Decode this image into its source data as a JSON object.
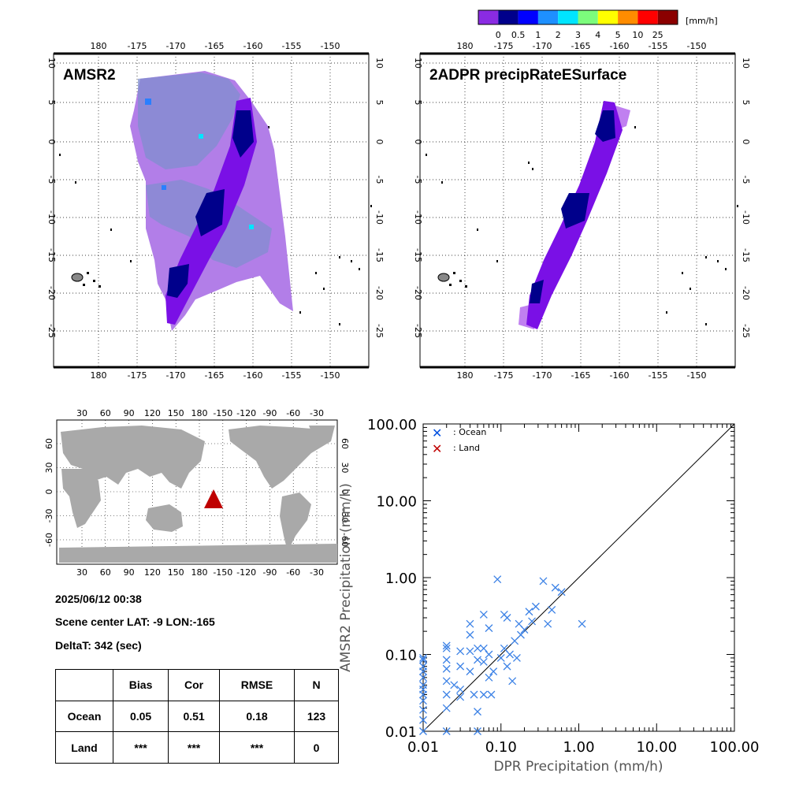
{
  "colorbar": {
    "unit": "[mm/h]",
    "labels": [
      "0",
      "0.5",
      "1",
      "2",
      "3",
      "4",
      "5",
      "10",
      "25"
    ],
    "colors": [
      "#8a2be2",
      "#00008b",
      "#0000ff",
      "#1e90ff",
      "#00e5ff",
      "#7cfc7c",
      "#ffff00",
      "#ff8c00",
      "#ff0000",
      "#8b0000"
    ]
  },
  "panels": [
    {
      "title": "AMSR2",
      "lon_labels": [
        "180",
        "-175",
        "-170",
        "-165",
        "-160",
        "-155",
        "-150"
      ],
      "lat_labels": [
        "10",
        "5",
        "0",
        "-5",
        "-10",
        "-15",
        "-20",
        "-25"
      ]
    },
    {
      "title": "2ADPR precipRateESurface",
      "lon_labels": [
        "180",
        "-175",
        "-170",
        "-165",
        "-160",
        "-155",
        "-150"
      ],
      "lat_labels": [
        "10",
        "5",
        "0",
        "-5",
        "-10",
        "-15",
        "-20",
        "-25"
      ]
    }
  ],
  "world_map": {
    "lon_labels": [
      "30",
      "60",
      "90",
      "120",
      "150",
      "180",
      "-150",
      "-120",
      "-90",
      "-60",
      "-30"
    ],
    "lat_labels": [
      "60",
      "30",
      "0",
      "-30",
      "-60"
    ],
    "land_color": "#a9a9a9",
    "marker_color": "#bf0000"
  },
  "info": {
    "datetime": "2025/06/12 00:38",
    "scene_center": "Scene center LAT: -9   LON:-165",
    "delta_t": "DeltaT:  342 (sec)"
  },
  "stats_table": {
    "headers": [
      "",
      "Bias",
      "Cor",
      "RMSE",
      "N"
    ],
    "rows": [
      [
        "Ocean",
        "0.05",
        "0.51",
        "0.18",
        "123"
      ],
      [
        "Land",
        "***",
        "***",
        "***",
        "0"
      ]
    ]
  },
  "chart_data": {
    "type": "scatter",
    "scale": "log-log",
    "xlim": [
      0.01,
      100
    ],
    "ylim": [
      0.01,
      100
    ],
    "xlabel": "DPR Precipitation (mm/h)",
    "ylabel": "AMSR2 Precipitation (mm/h)",
    "tick_labels": [
      "0.01",
      "0.10",
      "1.00",
      "10.00",
      "100.00"
    ],
    "reference_line": "1:1 diagonal",
    "legend": [
      {
        "label": ": Ocean",
        "color": "#0050e0"
      },
      {
        "label": ": Land",
        "color": "#c00000"
      }
    ],
    "series": [
      {
        "name": "Ocean",
        "color": "#3c82e6",
        "points": [
          [
            0.01,
            0.09
          ],
          [
            0.01,
            0.085
          ],
          [
            0.01,
            0.07
          ],
          [
            0.01,
            0.06
          ],
          [
            0.01,
            0.05
          ],
          [
            0.01,
            0.04
          ],
          [
            0.01,
            0.035
          ],
          [
            0.01,
            0.03
          ],
          [
            0.01,
            0.025
          ],
          [
            0.01,
            0.019
          ],
          [
            0.01,
            0.014
          ],
          [
            0.01,
            0.01
          ],
          [
            0.02,
            0.13
          ],
          [
            0.02,
            0.12
          ],
          [
            0.02,
            0.085
          ],
          [
            0.02,
            0.065
          ],
          [
            0.02,
            0.045
          ],
          [
            0.02,
            0.03
          ],
          [
            0.02,
            0.02
          ],
          [
            0.02,
            0.01
          ],
          [
            0.025,
            0.04
          ],
          [
            0.03,
            0.11
          ],
          [
            0.03,
            0.07
          ],
          [
            0.03,
            0.035
          ],
          [
            0.03,
            0.028
          ],
          [
            0.04,
            0.25
          ],
          [
            0.04,
            0.18
          ],
          [
            0.04,
            0.11
          ],
          [
            0.04,
            0.06
          ],
          [
            0.045,
            0.03
          ],
          [
            0.05,
            0.12
          ],
          [
            0.05,
            0.085
          ],
          [
            0.05,
            0.018
          ],
          [
            0.05,
            0.01
          ],
          [
            0.06,
            0.33
          ],
          [
            0.06,
            0.12
          ],
          [
            0.06,
            0.08
          ],
          [
            0.06,
            0.03
          ],
          [
            0.07,
            0.22
          ],
          [
            0.07,
            0.1
          ],
          [
            0.07,
            0.05
          ],
          [
            0.075,
            0.03
          ],
          [
            0.08,
            0.06
          ],
          [
            0.09,
            0.95
          ],
          [
            0.1,
            0.09
          ],
          [
            0.11,
            0.33
          ],
          [
            0.11,
            0.12
          ],
          [
            0.12,
            0.3
          ],
          [
            0.12,
            0.07
          ],
          [
            0.13,
            0.1
          ],
          [
            0.14,
            0.045
          ],
          [
            0.15,
            0.15
          ],
          [
            0.16,
            0.09
          ],
          [
            0.17,
            0.25
          ],
          [
            0.18,
            0.18
          ],
          [
            0.2,
            0.21
          ],
          [
            0.23,
            0.36
          ],
          [
            0.25,
            0.27
          ],
          [
            0.28,
            0.42
          ],
          [
            0.35,
            0.9
          ],
          [
            0.4,
            0.25
          ],
          [
            0.45,
            0.38
          ],
          [
            0.5,
            0.74
          ],
          [
            0.6,
            0.65
          ],
          [
            1.1,
            0.25
          ]
        ]
      }
    ]
  }
}
